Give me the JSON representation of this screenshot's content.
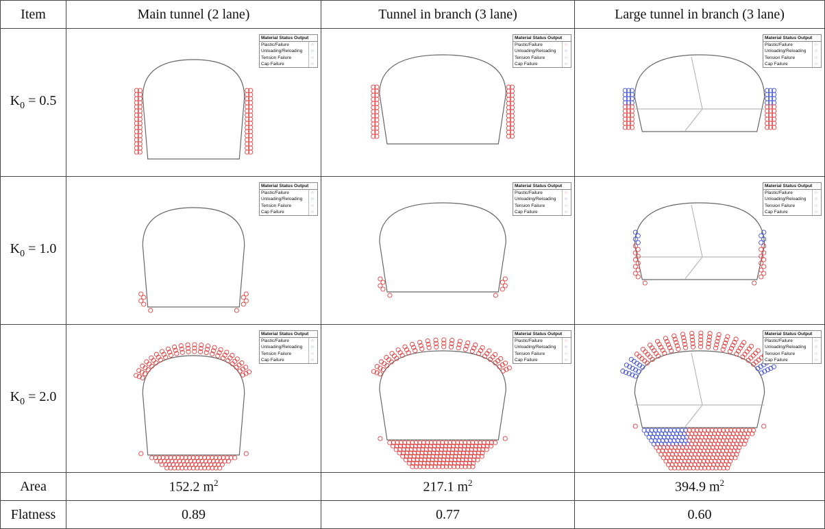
{
  "header": {
    "item": "Item",
    "cols": [
      "Main tunnel (2 lane)",
      "Tunnel in branch (3 lane)",
      "Large tunnel in branch (3 lane)"
    ]
  },
  "rows": [
    {
      "label_prefix": "K",
      "label_sub": "0",
      "label_suffix": " = 0.5"
    },
    {
      "label_prefix": "K",
      "label_sub": "0",
      "label_suffix": " = 1.0"
    },
    {
      "label_prefix": "K",
      "label_sub": "0",
      "label_suffix": " = 2.0"
    }
  ],
  "legend": {
    "title": "Material Status Output",
    "items": [
      "Plastic/Failure",
      "Unloading/Reloading",
      "Tension Failure",
      "Cap Failure"
    ]
  },
  "area": {
    "label": "Area",
    "values": [
      "152.2 m",
      "217.1 m",
      "394.9 m"
    ],
    "unit_sup": "2"
  },
  "flatness": {
    "label": "Flatness",
    "values": [
      "0.89",
      "0.77",
      "0.60"
    ]
  },
  "colors": {
    "plastic": "#e23b3b",
    "unloading": "#3a4bd8",
    "tension": "#2fae2f",
    "cap": "#7a3ab8",
    "outline": "#666666"
  }
}
